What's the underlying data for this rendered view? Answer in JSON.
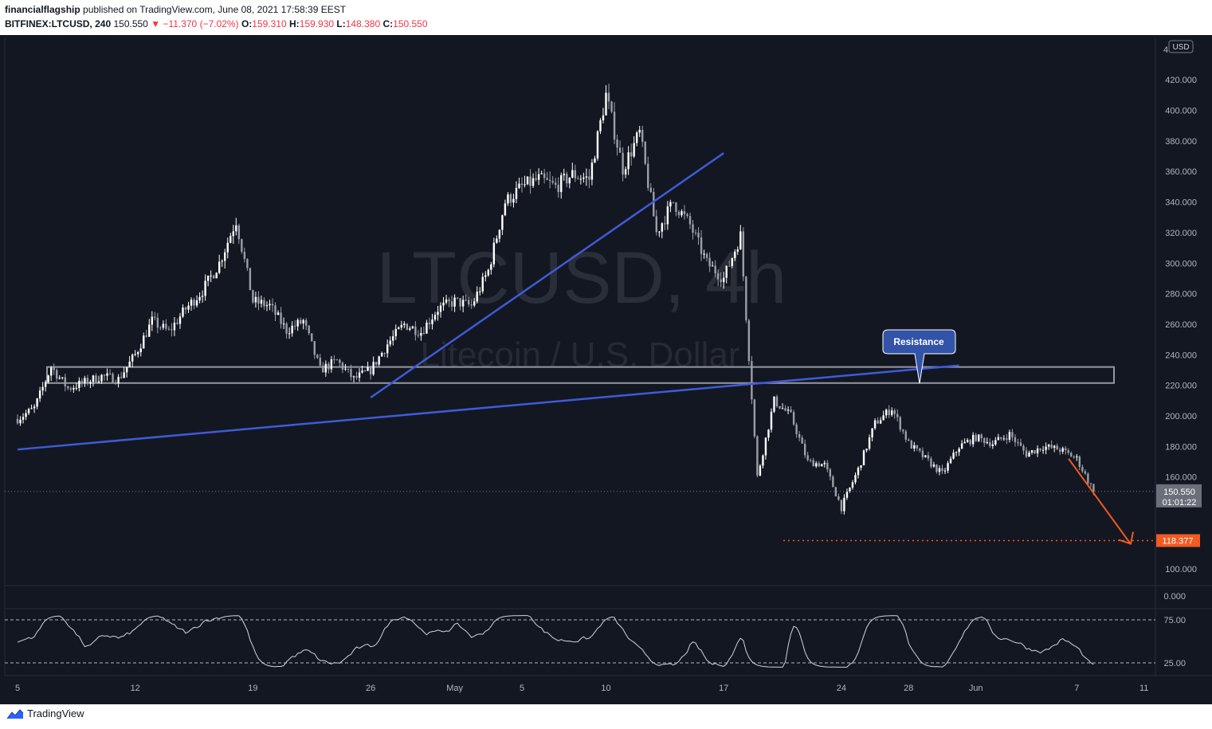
{
  "header": {
    "publisher": "financialflagship",
    "published_text": "published on TradingView.com, June 08, 2021 17:58:39 EEST",
    "symbol": "BITFINEX:LTCUSD, 240",
    "last": "150.550",
    "change": "▼ −11.370 (−7.02%)",
    "o_label": "O:",
    "o": "159.310",
    "h_label": "H:",
    "h": "159.930",
    "l_label": "L:",
    "l": "148.380",
    "c_label": "C:",
    "c": "150.550"
  },
  "footer": {
    "brand": "TradingView"
  },
  "watermark": {
    "symbol": "LTCUSD, 4h",
    "description": "Litecoin / U.S. Dollar"
  },
  "colors": {
    "background": "#131722",
    "bull": "#ffffff",
    "bear": "#9b9fa8",
    "trendline": "#3f5bd8",
    "target": "#f15a22",
    "callout": "#3253a8",
    "zone": "#9598a1"
  },
  "chart_data": {
    "type": "candlestick",
    "timeframe": "4h",
    "currency_label": "USD",
    "y_axis_ticks": [
      "420.000",
      "400.000",
      "380.000",
      "360.000",
      "340.000",
      "320.000",
      "300.000",
      "280.000",
      "260.000",
      "240.000",
      "220.000",
      "200.000",
      "180.000",
      "160.000",
      "100.000"
    ],
    "ylim": [
      100,
      440
    ],
    "x_axis_ticks": [
      "5",
      "12",
      "19",
      "26",
      "May",
      "5",
      "10",
      "17",
      "24",
      "28",
      "Jun",
      "7",
      "11"
    ],
    "date_range": [
      "2021-04-05",
      "2021-06-08"
    ],
    "last_price": {
      "value": "150.550",
      "countdown": "01:01:22"
    },
    "target": {
      "label": "118.377",
      "value": 118.377
    },
    "annotations": [
      {
        "type": "callout",
        "text": "Resistance",
        "price": 229
      },
      {
        "type": "zone",
        "from": 221.5,
        "to": 232
      }
    ],
    "trendlines": [
      {
        "from_date": "2021-04-05",
        "from_price": 178,
        "to_date": "2021-05-31",
        "to_price": 233
      },
      {
        "from_date": "2021-04-26",
        "from_price": 212,
        "to_date": "2021-05-17",
        "to_price": 372
      }
    ],
    "price_path": [
      [
        "2021-04-05",
        198
      ],
      [
        "2021-04-06",
        205
      ],
      [
        "2021-04-07",
        232
      ],
      [
        "2021-04-08",
        218
      ],
      [
        "2021-04-09",
        222
      ],
      [
        "2021-04-10",
        226
      ],
      [
        "2021-04-11",
        224
      ],
      [
        "2021-04-12",
        240
      ],
      [
        "2021-04-13",
        262
      ],
      [
        "2021-04-14",
        255
      ],
      [
        "2021-04-15",
        270
      ],
      [
        "2021-04-16",
        282
      ],
      [
        "2021-04-17",
        300
      ],
      [
        "2021-04-18",
        328
      ],
      [
        "2021-04-19",
        275
      ],
      [
        "2021-04-20",
        272
      ],
      [
        "2021-04-21",
        256
      ],
      [
        "2021-04-22",
        262
      ],
      [
        "2021-04-23",
        230
      ],
      [
        "2021-04-24",
        236
      ],
      [
        "2021-04-25",
        224
      ],
      [
        "2021-04-26",
        230
      ],
      [
        "2021-04-27",
        247
      ],
      [
        "2021-04-28",
        260
      ],
      [
        "2021-04-29",
        255
      ],
      [
        "2021-04-30",
        270
      ],
      [
        "2021-05-01",
        275
      ],
      [
        "2021-05-02",
        272
      ],
      [
        "2021-05-03",
        295
      ],
      [
        "2021-05-04",
        340
      ],
      [
        "2021-05-05",
        350
      ],
      [
        "2021-05-06",
        355
      ],
      [
        "2021-05-07",
        350
      ],
      [
        "2021-05-08",
        358
      ],
      [
        "2021-05-09",
        355
      ],
      [
        "2021-05-10",
        410
      ],
      [
        "2021-05-11",
        362
      ],
      [
        "2021-05-12",
        385
      ],
      [
        "2021-05-13",
        320
      ],
      [
        "2021-05-14",
        340
      ],
      [
        "2021-05-15",
        325
      ],
      [
        "2021-05-16",
        300
      ],
      [
        "2021-05-17",
        290
      ],
      [
        "2021-05-18",
        318
      ],
      [
        "2021-05-19",
        160
      ],
      [
        "2021-05-20",
        210
      ],
      [
        "2021-05-21",
        200
      ],
      [
        "2021-05-22",
        170
      ],
      [
        "2021-05-23",
        168
      ],
      [
        "2021-05-24",
        140
      ],
      [
        "2021-05-25",
        165
      ],
      [
        "2021-05-26",
        195
      ],
      [
        "2021-05-27",
        205
      ],
      [
        "2021-05-28",
        182
      ],
      [
        "2021-05-29",
        172
      ],
      [
        "2021-05-30",
        162
      ],
      [
        "2021-05-31",
        180
      ],
      [
        "2021-06-01",
        186
      ],
      [
        "2021-06-02",
        182
      ],
      [
        "2021-06-03",
        188
      ],
      [
        "2021-06-04",
        175
      ],
      [
        "2021-06-05",
        180
      ],
      [
        "2021-06-06",
        178
      ],
      [
        "2021-06-07",
        172
      ],
      [
        "2021-06-08",
        150.55
      ]
    ],
    "indicator": {
      "type": "oscillator",
      "levels": [
        75,
        25
      ],
      "y_axis_ticks": [
        "75.00",
        "25.00"
      ],
      "volume_axis_tick": "0.000"
    }
  }
}
